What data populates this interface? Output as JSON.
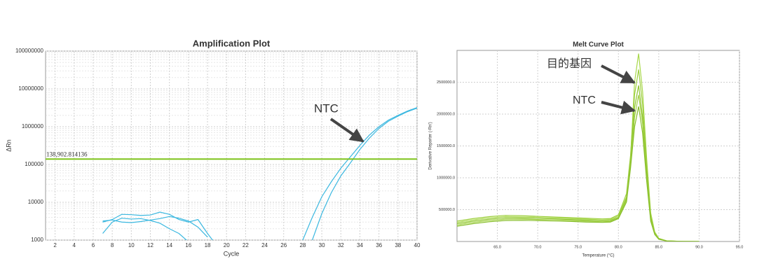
{
  "chart_data": [
    {
      "type": "line",
      "title": "Amplification Plot",
      "x_label": "Cycle",
      "y_label": "ΔRn",
      "log_y": true,
      "grid": true,
      "xlim": [
        1,
        40
      ],
      "xticks": [
        2,
        4,
        6,
        8,
        10,
        12,
        14,
        16,
        18,
        20,
        22,
        24,
        26,
        28,
        30,
        32,
        34,
        36,
        38,
        40
      ],
      "ylim": [
        1000,
        100000000
      ],
      "yticks": [
        1000,
        10000,
        100000,
        1000000,
        10000000,
        100000000
      ],
      "threshold": {
        "value": 138902.814136,
        "label": "138,902.814136",
        "color": "#7fc31c",
        "label_color": "#e00000"
      },
      "annotations": [
        "NTC"
      ],
      "x": [
        1,
        2,
        3,
        4,
        5,
        6,
        7,
        8,
        9,
        10,
        11,
        12,
        13,
        14,
        15,
        16,
        17,
        18,
        19,
        20,
        21,
        22,
        23,
        24,
        25,
        26,
        27,
        28,
        29,
        30,
        31,
        32,
        33,
        34,
        35,
        36,
        37,
        38,
        39,
        40
      ],
      "series": [
        {
          "color": "#3bb8e0",
          "values": [
            null,
            null,
            null,
            null,
            null,
            null,
            null,
            null,
            null,
            null,
            null,
            null,
            null,
            null,
            null,
            null,
            null,
            null,
            null,
            null,
            null,
            null,
            null,
            null,
            null,
            null,
            null,
            1000,
            4000,
            14000,
            35000,
            80000,
            160000,
            320000,
            600000,
            1000000,
            1500000,
            2000000,
            2600000,
            3200000
          ]
        },
        {
          "color": "#3bb8e0",
          "values": [
            null,
            null,
            null,
            null,
            null,
            null,
            null,
            null,
            null,
            null,
            null,
            null,
            null,
            null,
            null,
            null,
            null,
            null,
            null,
            null,
            null,
            null,
            null,
            null,
            null,
            null,
            null,
            null,
            1000,
            5000,
            18000,
            50000,
            110000,
            250000,
            500000,
            900000,
            1400000,
            1900000,
            2500000,
            3100000
          ]
        },
        {
          "color": "#3bb8e0",
          "values": [
            null,
            null,
            null,
            null,
            null,
            null,
            3000,
            3500,
            4800,
            4700,
            4500,
            4600,
            5500,
            4800,
            3500,
            3000,
            3500,
            1500,
            700,
            null,
            null,
            null,
            null,
            null,
            null,
            null,
            null,
            null,
            null,
            null,
            null,
            null,
            null,
            null,
            null,
            null,
            null,
            null,
            null,
            null
          ]
        },
        {
          "color": "#3bb8e0",
          "values": [
            null,
            null,
            null,
            null,
            null,
            null,
            1500,
            3000,
            3800,
            3600,
            3700,
            3300,
            2800,
            2000,
            1500,
            900,
            null,
            null,
            null,
            null,
            null,
            null,
            null,
            null,
            null,
            null,
            null,
            null,
            null,
            null,
            null,
            null,
            null,
            null,
            null,
            null,
            null,
            null,
            null,
            null
          ]
        },
        {
          "color": "#3bb8e0",
          "values": [
            null,
            null,
            null,
            null,
            null,
            null,
            3200,
            3400,
            3000,
            2900,
            3100,
            3400,
            3700,
            4200,
            3800,
            3200,
            2200,
            1200,
            null,
            null,
            null,
            null,
            null,
            null,
            null,
            null,
            null,
            null,
            null,
            null,
            null,
            null,
            null,
            null,
            null,
            null,
            null,
            null,
            null,
            null
          ]
        }
      ]
    },
    {
      "type": "line",
      "title": "Melt Curve Plot",
      "x_label": "Temperature (°C)",
      "y_label": "Derivative Reporter (-Rn')",
      "log_y": false,
      "grid": true,
      "xlim": [
        60,
        95
      ],
      "xticks": [
        {
          "value": 65,
          "label": "65.0"
        },
        {
          "value": 70,
          "label": "70.0"
        },
        {
          "value": 75,
          "label": "75.0"
        },
        {
          "value": 80,
          "label": "80.0"
        },
        {
          "value": 85,
          "label": "85.0"
        },
        {
          "value": 90,
          "label": "90.0"
        },
        {
          "value": 95,
          "label": "95.0"
        }
      ],
      "ylim": [
        0,
        3000000
      ],
      "yticks": [
        {
          "value": 500000,
          "label": "500000.0"
        },
        {
          "value": 1000000,
          "label": "1000000.0"
        },
        {
          "value": 1500000,
          "label": "1500000.0"
        },
        {
          "value": 2000000,
          "label": "2000000.0"
        },
        {
          "value": 2500000,
          "label": "2500000.0"
        }
      ],
      "annotations": [
        "目的基因",
        "NTC"
      ],
      "x": [
        60,
        62,
        64,
        66,
        68,
        70,
        72,
        74,
        76,
        78,
        79,
        80,
        81,
        81.5,
        82,
        82.5,
        83,
        83.5,
        84,
        84.5,
        85,
        86,
        88,
        90
      ],
      "series": [
        {
          "color": "#a8d84a",
          "values": [
            300000,
            340000,
            370000,
            390000,
            385000,
            380000,
            370000,
            360000,
            350000,
            340000,
            345000,
            400000,
            700000,
            1300000,
            2500000,
            2950000,
            2350000,
            1300000,
            450000,
            150000,
            50000,
            10000,
            2000,
            0
          ]
        },
        {
          "color": "#9ccf3c",
          "values": [
            320000,
            360000,
            390000,
            410000,
            405000,
            395000,
            385000,
            375000,
            365000,
            355000,
            360000,
            420000,
            750000,
            1350000,
            2300000,
            2700000,
            2150000,
            1200000,
            400000,
            140000,
            45000,
            9000,
            2000,
            0
          ]
        },
        {
          "color": "#8fc530",
          "values": [
            280000,
            320000,
            350000,
            370000,
            368000,
            362000,
            355000,
            345000,
            335000,
            325000,
            330000,
            380000,
            680000,
            1250000,
            2100000,
            2450000,
            1950000,
            1100000,
            370000,
            130000,
            40000,
            8000,
            1500,
            0
          ]
        },
        {
          "color": "#a3d245",
          "values": [
            260000,
            300000,
            330000,
            350000,
            350000,
            345000,
            340000,
            330000,
            320000,
            310000,
            315000,
            370000,
            650000,
            1200000,
            1950000,
            2300000,
            1850000,
            1000000,
            340000,
            120000,
            38000,
            7000,
            1500,
            0
          ]
        },
        {
          "color": "#86bd28",
          "values": [
            240000,
            280000,
            310000,
            330000,
            332000,
            328000,
            322000,
            315000,
            305000,
            300000,
            305000,
            360000,
            620000,
            1150000,
            1800000,
            2120000,
            1700000,
            950000,
            320000,
            110000,
            35000,
            7000,
            1000,
            0
          ]
        }
      ]
    }
  ]
}
